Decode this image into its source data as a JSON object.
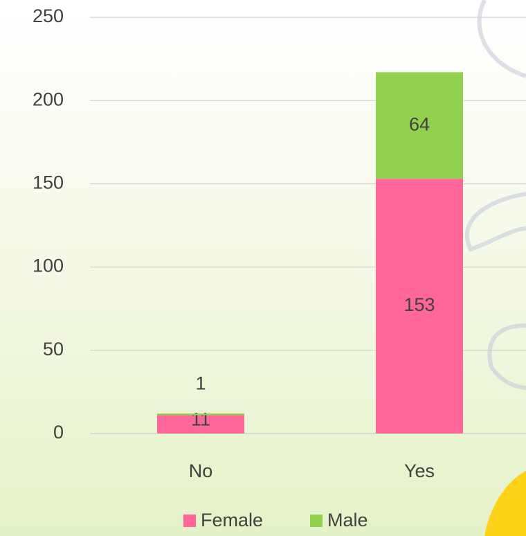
{
  "chart_data": {
    "type": "stacked_bar",
    "categories": [
      "No",
      "Yes"
    ],
    "series": [
      {
        "name": "Female",
        "color": "#ff6699",
        "values": [
          11,
          153
        ]
      },
      {
        "name": "Male",
        "color": "#92d050",
        "values": [
          1,
          64
        ]
      }
    ],
    "ylim": [
      0,
      250
    ],
    "yticks": [
      0,
      50,
      100,
      150,
      200,
      250
    ],
    "grid": true,
    "legend": "bottom"
  }
}
